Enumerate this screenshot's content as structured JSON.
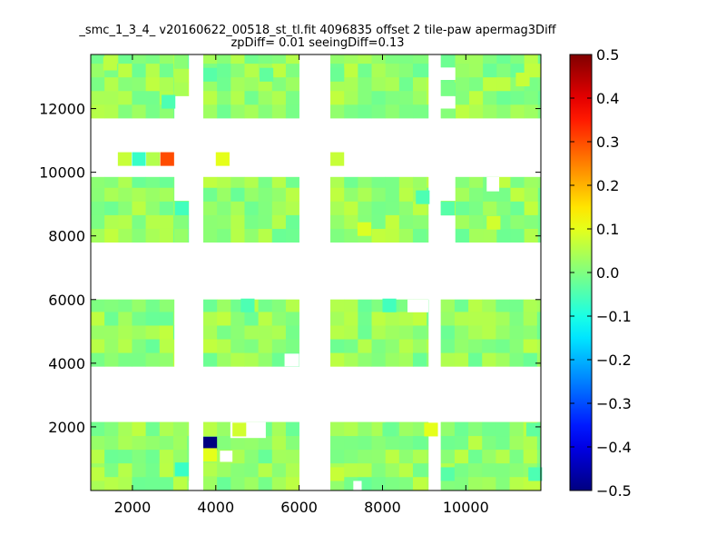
{
  "chart_data": {
    "type": "heatmap",
    "title_lines": [
      "_smc_1_3_4_ v20160622_00518_st_tl.fit 4096835 offset 2 tile-paw apermag3Diff",
      "zpDiff= 0.01 seeingDiff=0.13"
    ],
    "xlabel": "",
    "ylabel": "",
    "xlim": [
      1000,
      11800
    ],
    "ylim": [
      0,
      13700
    ],
    "x_ticks": [
      "2000",
      "4000",
      "6000",
      "8000",
      "10000"
    ],
    "x_tick_values": [
      2000,
      4000,
      6000,
      8000,
      10000
    ],
    "y_ticks": [
      "2000",
      "4000",
      "6000",
      "8000",
      "10000",
      "12000"
    ],
    "y_tick_values": [
      2000,
      4000,
      6000,
      8000,
      10000,
      12000
    ],
    "colorbar": {
      "colormap": "jet",
      "min": -0.5,
      "max": 0.5,
      "ticks": [
        "0.5",
        "0.4",
        "0.3",
        "0.2",
        "0.1",
        "0.0",
        "−0.1",
        "−0.2",
        "−0.3",
        "−0.4",
        "−0.5"
      ],
      "tick_values": [
        0.5,
        0.4,
        0.3,
        0.2,
        0.1,
        0.0,
        -0.1,
        -0.2,
        -0.3,
        -0.4,
        -0.5
      ]
    },
    "cell_size": [
      330,
      430
    ],
    "background_value": 0.02,
    "blocks": [
      {
        "x": [
          1000,
          3350
        ],
        "y": [
          0,
          2150
        ]
      },
      {
        "x": [
          3700,
          6000
        ],
        "y": [
          0,
          2150
        ]
      },
      {
        "x": [
          6750,
          9100
        ],
        "y": [
          0,
          2150
        ]
      },
      {
        "x": [
          9400,
          11800
        ],
        "y": [
          0,
          2150
        ]
      },
      {
        "x": [
          1000,
          3000
        ],
        "y": [
          3900,
          6000
        ]
      },
      {
        "x": [
          3700,
          6000
        ],
        "y": [
          3900,
          6000
        ]
      },
      {
        "x": [
          6750,
          9100
        ],
        "y": [
          3900,
          6000
        ]
      },
      {
        "x": [
          9400,
          11800
        ],
        "y": [
          3900,
          6000
        ]
      },
      {
        "x": [
          1000,
          3000
        ],
        "y": [
          7800,
          9850
        ]
      },
      {
        "x": [
          3000,
          3350
        ],
        "y": [
          7800,
          9100
        ]
      },
      {
        "x": [
          3700,
          6000
        ],
        "y": [
          7800,
          9850
        ]
      },
      {
        "x": [
          6750,
          9100
        ],
        "y": [
          7800,
          9850
        ]
      },
      {
        "x": [
          9400,
          9750
        ],
        "y": [
          8650,
          9100
        ]
      },
      {
        "x": [
          9750,
          11800
        ],
        "y": [
          7800,
          9850
        ]
      },
      {
        "x": [
          1000,
          3000
        ],
        "y": [
          11700,
          13700
        ]
      },
      {
        "x": [
          3000,
          3350
        ],
        "y": [
          12400,
          13700
        ]
      },
      {
        "x": [
          3700,
          6000
        ],
        "y": [
          11700,
          13700
        ]
      },
      {
        "x": [
          6750,
          9100
        ],
        "y": [
          11700,
          13700
        ]
      },
      {
        "x": [
          9400,
          9750
        ],
        "y": [
          11700,
          12000
        ]
      },
      {
        "x": [
          9400,
          9750
        ],
        "y": [
          12400,
          12900
        ]
      },
      {
        "x": [
          9400,
          9750
        ],
        "y": [
          13300,
          13700
        ]
      },
      {
        "x": [
          9750,
          11800
        ],
        "y": [
          11700,
          13700
        ]
      }
    ],
    "gaps": [
      {
        "x": [
          3350,
          3700
        ],
        "y": [
          0,
          300
        ]
      },
      {
        "x": [
          4100,
          4400
        ],
        "y": [
          900,
          1250
        ]
      },
      {
        "x": [
          4350,
          5200
        ],
        "y": [
          1650,
          2150
        ]
      },
      {
        "x": [
          7300,
          7500
        ],
        "y": [
          0,
          300
        ]
      },
      {
        "x": [
          5650,
          6000
        ],
        "y": [
          3900,
          4300
        ]
      },
      {
        "x": [
          8600,
          9100
        ],
        "y": [
          5600,
          6000
        ]
      },
      {
        "x": [
          10500,
          10800
        ],
        "y": [
          9400,
          9850
        ]
      }
    ],
    "cells": [
      {
        "x": 3700,
        "y": 1260,
        "value": -0.5
      },
      {
        "x": 3700,
        "y": 900,
        "value": 0.1
      },
      {
        "x": 3700,
        "y": 450,
        "value": 0.05
      },
      {
        "x": 3020,
        "y": 450,
        "value": -0.07
      },
      {
        "x": 1000,
        "y": 300,
        "value": 0.06
      },
      {
        "x": 6750,
        "y": 300,
        "value": 0.07
      },
      {
        "x": 9000,
        "y": 1700,
        "value": 0.1
      },
      {
        "x": 8000,
        "y": 1700,
        "value": -0.02
      },
      {
        "x": 11450,
        "y": 1700,
        "value": -0.03
      },
      {
        "x": 11500,
        "y": 300,
        "value": -0.05
      },
      {
        "x": 9400,
        "y": 300,
        "value": -0.04
      },
      {
        "x": 4400,
        "y": 1700,
        "value": 0.08
      },
      {
        "x": 1650,
        "y": 10200,
        "value": 0.07
      },
      {
        "x": 1990,
        "y": 10200,
        "value": -0.07
      },
      {
        "x": 2330,
        "y": 10200,
        "value": 0.05
      },
      {
        "x": 2670,
        "y": 10200,
        "value": 0.3
      },
      {
        "x": 4000,
        "y": 10200,
        "value": 0.1
      },
      {
        "x": 6750,
        "y": 10200,
        "value": 0.07
      },
      {
        "x": 3020,
        "y": 8650,
        "value": -0.06
      },
      {
        "x": 7400,
        "y": 8000,
        "value": 0.09
      },
      {
        "x": 8800,
        "y": 9000,
        "value": -0.05
      },
      {
        "x": 9400,
        "y": 8650,
        "value": -0.04
      },
      {
        "x": 10500,
        "y": 8200,
        "value": 0.08
      },
      {
        "x": 4600,
        "y": 5600,
        "value": -0.05
      },
      {
        "x": 8000,
        "y": 5600,
        "value": -0.06
      },
      {
        "x": 2700,
        "y": 12000,
        "value": -0.05
      },
      {
        "x": 3700,
        "y": 12850,
        "value": -0.04
      },
      {
        "x": 5050,
        "y": 12850,
        "value": -0.03
      },
      {
        "x": 6750,
        "y": 12850,
        "value": -0.02
      },
      {
        "x": 11200,
        "y": 12700,
        "value": 0.07
      },
      {
        "x": 1300,
        "y": 13200,
        "value": 0.06
      }
    ]
  }
}
